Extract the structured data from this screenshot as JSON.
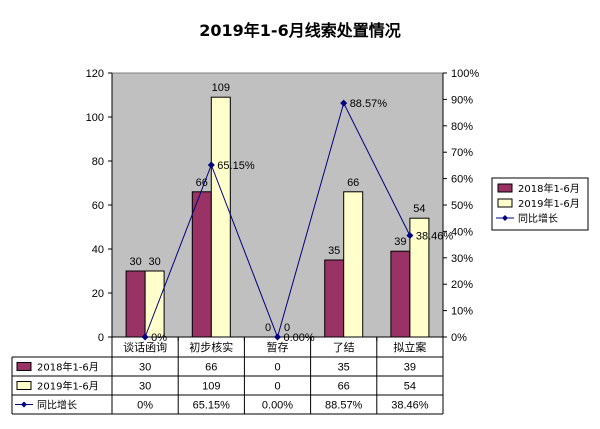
{
  "chart_data": {
    "type": "bar",
    "title": "2019年1-6月线索处置情况",
    "categories": [
      "谈话函询",
      "初步核实",
      "暂存",
      "了结",
      "拟立案"
    ],
    "series": [
      {
        "name": "2018年1-6月",
        "kind": "bar",
        "color": "#993366",
        "values": [
          30,
          66,
          0,
          35,
          39
        ]
      },
      {
        "name": "2019年1-6月",
        "kind": "bar",
        "color": "#FFFFCC",
        "values": [
          30,
          109,
          0,
          66,
          54
        ]
      },
      {
        "name": "同比增长",
        "kind": "line",
        "axis": "secondary",
        "color": "#000080",
        "values": [
          0,
          65.15,
          0.0,
          88.57,
          38.46
        ],
        "labels": [
          "0%",
          "65.15%",
          "0.00%",
          "88.57%",
          "38.46%"
        ]
      }
    ],
    "y_primary": {
      "min": 0,
      "max": 120,
      "step": 20,
      "ticks": [
        "0",
        "20",
        "40",
        "60",
        "80",
        "100",
        "120"
      ]
    },
    "y_secondary": {
      "min": 0,
      "max": 100,
      "step": 10,
      "ticks": [
        "0%",
        "10%",
        "20%",
        "30%",
        "40%",
        "50%",
        "60%",
        "70%",
        "80%",
        "90%",
        "100%"
      ]
    },
    "plot_background": "#C0C0C0",
    "legend_position": "right",
    "data_table": {
      "rows": [
        {
          "label": "2018年1-6月",
          "cells": [
            "30",
            "66",
            "0",
            "35",
            "39"
          ]
        },
        {
          "label": "2019年1-6月",
          "cells": [
            "30",
            "109",
            "0",
            "66",
            "54"
          ]
        },
        {
          "label": "同比增长",
          "cells": [
            "0%",
            "65.15%",
            "0.00%",
            "88.57%",
            "38.46%"
          ]
        }
      ]
    }
  }
}
